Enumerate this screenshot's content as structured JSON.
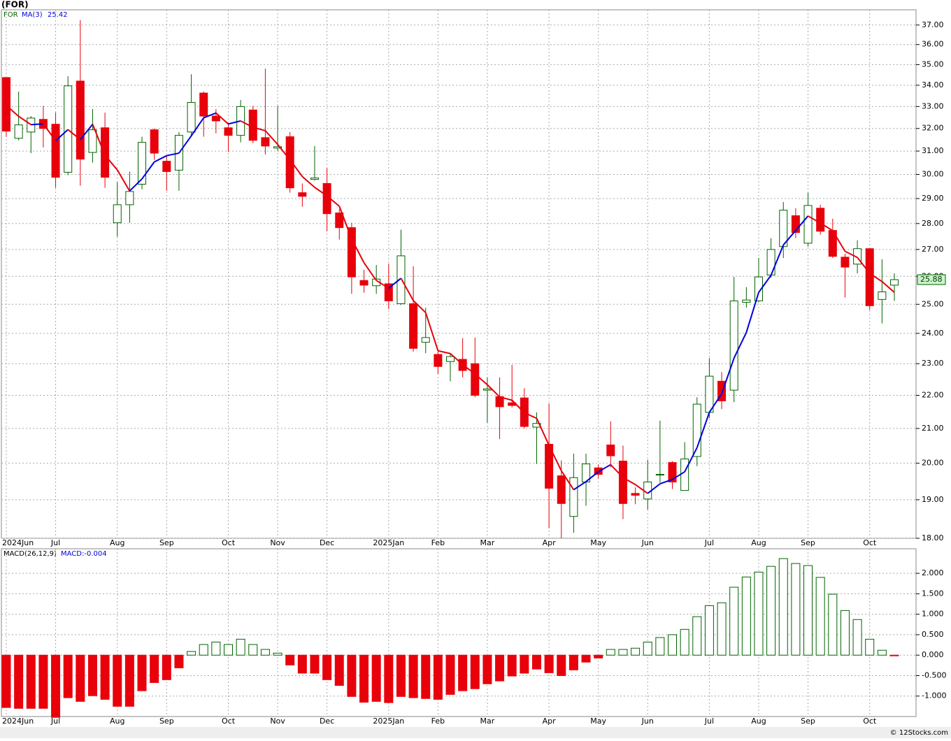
{
  "chart_data": [
    {
      "type": "candlestick",
      "title": "(FOR)",
      "symbol": "FOR",
      "source": "© 12Stocks.com",
      "categories": [
        "2024Jun",
        null,
        null,
        null,
        "Jul",
        null,
        null,
        null,
        null,
        "Aug",
        null,
        null,
        null,
        "Sep",
        null,
        null,
        null,
        null,
        "Oct",
        null,
        null,
        null,
        "Nov",
        null,
        null,
        null,
        "Dec",
        null,
        null,
        null,
        null,
        "2025Jan",
        null,
        null,
        null,
        "Feb",
        null,
        null,
        null,
        "Mar",
        null,
        null,
        null,
        null,
        "Apr",
        null,
        null,
        null,
        "May",
        null,
        null,
        null,
        "Jun",
        null,
        null,
        null,
        null,
        "Jul",
        null,
        null,
        null,
        "Aug",
        null,
        null,
        null,
        "Sep",
        null,
        null,
        null,
        null,
        "Oct",
        null,
        null
      ],
      "open": [
        34.37,
        31.56,
        31.84,
        32.41,
        32.19,
        30.09,
        34.2,
        30.94,
        32.03,
        28.03,
        28.75,
        29.59,
        31.94,
        30.56,
        30.18,
        31.84,
        33.63,
        32.56,
        32.03,
        31.69,
        32.84,
        31.59,
        31.13,
        31.63,
        29.24,
        29.79,
        29.62,
        28.42,
        27.84,
        25.85,
        25.66,
        25.73,
        25.02,
        25.02,
        23.7,
        23.3,
        23.07,
        23.14,
        23.0,
        22.16,
        21.96,
        21.77,
        21.92,
        21.04,
        20.54,
        19.65,
        18.56,
        19.48,
        19.87,
        20.52,
        20.06,
        19.17,
        19.02,
        19.67,
        20.02,
        19.25,
        20.19,
        21.48,
        22.44,
        22.16,
        25.07,
        25.12,
        26.05,
        27.11,
        28.31,
        27.24,
        28.61,
        27.73,
        26.71,
        26.45,
        27.03,
        25.17,
        25.68
      ],
      "high": [
        34.37,
        33.7,
        32.56,
        33.03,
        32.72,
        34.43,
        37.25,
        32.88,
        32.72,
        29.68,
        30.12,
        31.63,
        32.0,
        30.79,
        31.84,
        34.53,
        33.7,
        32.88,
        32.25,
        33.3,
        33.03,
        34.8,
        33.03,
        31.84,
        29.62,
        31.22,
        30.26,
        28.58,
        28.03,
        26.24,
        26.42,
        26.47,
        27.76,
        26.37,
        24.88,
        23.45,
        23.34,
        23.84,
        23.86,
        22.56,
        22.56,
        22.96,
        22.22,
        21.48,
        21.75,
        20.08,
        20.27,
        20.27,
        19.96,
        21.21,
        20.5,
        19.33,
        20.1,
        21.23,
        20.06,
        20.6,
        21.94,
        23.18,
        22.73,
        25.98,
        25.61,
        26.68,
        27.43,
        28.86,
        28.61,
        29.24,
        28.75,
        28.19,
        26.84,
        27.35,
        27.05,
        26.63,
        26.11
      ],
      "low": [
        31.63,
        31.47,
        30.91,
        31.16,
        29.44,
        29.97,
        29.53,
        30.5,
        29.44,
        27.49,
        28.03,
        29.38,
        30.62,
        29.32,
        29.32,
        31.63,
        31.63,
        31.78,
        30.97,
        31.38,
        31.34,
        30.85,
        31.0,
        29.24,
        28.67,
        29.74,
        27.7,
        27.38,
        25.37,
        25.41,
        25.37,
        24.83,
        24.98,
        23.39,
        23.34,
        22.67,
        22.44,
        22.56,
        21.94,
        21.17,
        20.69,
        21.63,
        21.0,
        19.98,
        18.26,
        18.0,
        18.14,
        18.84,
        19.58,
        19.88,
        18.49,
        18.88,
        18.74,
        19.46,
        19.29,
        19.25,
        19.92,
        21.31,
        21.58,
        21.79,
        24.88,
        25.07,
        25.95,
        26.68,
        27.43,
        27.11,
        27.57,
        26.68,
        25.24,
        26.11,
        24.8,
        24.34,
        25.12
      ],
      "close": [
        31.88,
        32.16,
        32.47,
        32.0,
        29.88,
        33.97,
        30.65,
        31.94,
        29.88,
        28.75,
        29.29,
        31.38,
        30.91,
        30.12,
        31.69,
        33.19,
        32.56,
        32.34,
        31.69,
        33.0,
        31.47,
        31.22,
        31.19,
        29.44,
        29.09,
        29.85,
        28.39,
        27.84,
        25.98,
        25.68,
        25.9,
        25.12,
        26.76,
        23.5,
        23.86,
        22.91,
        23.23,
        22.78,
        22.0,
        22.2,
        21.65,
        21.69,
        21.06,
        21.15,
        19.31,
        18.9,
        19.6,
        19.98,
        19.69,
        20.21,
        18.9,
        19.12,
        19.48,
        19.69,
        19.48,
        20.12,
        21.73,
        22.6,
        21.83,
        25.12,
        25.15,
        25.98,
        27.0,
        28.53,
        27.65,
        28.72,
        27.7,
        26.74,
        26.34,
        27.03,
        24.95,
        25.44,
        25.88
      ],
      "up_color": "#006400",
      "down_color": "#e8000b",
      "series": [
        {
          "name": "MA(3)",
          "rising_color": "#0000dd",
          "falling_color": "#e8000b",
          "values": [
            33.05,
            32.55,
            32.17,
            32.21,
            31.45,
            31.95,
            31.5,
            32.19,
            30.82,
            30.19,
            29.31,
            29.81,
            30.53,
            30.8,
            30.91,
            31.67,
            32.48,
            32.7,
            32.2,
            32.34,
            32.05,
            31.9,
            31.29,
            30.62,
            29.91,
            29.46,
            29.11,
            28.69,
            27.4,
            26.5,
            25.85,
            25.57,
            25.93,
            25.13,
            24.71,
            23.42,
            23.33,
            22.97,
            22.67,
            22.33,
            21.95,
            21.85,
            21.47,
            21.3,
            20.51,
            19.79,
            19.27,
            19.49,
            19.76,
            19.96,
            19.6,
            19.41,
            19.17,
            19.43,
            19.55,
            19.76,
            20.44,
            21.48,
            22.05,
            23.18,
            24.03,
            25.42,
            26.04,
            27.17,
            27.73,
            28.3,
            28.02,
            27.72,
            26.93,
            26.7,
            26.11,
            25.81,
            25.42
          ]
        }
      ],
      "log_scale": true,
      "grid": true,
      "ylim": [
        18,
        37.8
      ],
      "yticks": [
        {
          "value": 18,
          "label": "18.00"
        },
        {
          "value": 19,
          "label": "19.00"
        },
        {
          "value": 20,
          "label": "20.00"
        },
        {
          "value": 21,
          "label": "21.00"
        },
        {
          "value": 22,
          "label": "22.00"
        },
        {
          "value": 23,
          "label": "23.00"
        },
        {
          "value": 24,
          "label": "24.00"
        },
        {
          "value": 25,
          "label": "25.00"
        },
        {
          "value": 26,
          "label": "26.00"
        },
        {
          "value": 27,
          "label": "27.00"
        },
        {
          "value": 28,
          "label": "28.00"
        },
        {
          "value": 29,
          "label": "29.00"
        },
        {
          "value": 30,
          "label": "30.00"
        },
        {
          "value": 31,
          "label": "31.00"
        },
        {
          "value": 32,
          "label": "32.00"
        },
        {
          "value": 33,
          "label": "33.00"
        },
        {
          "value": 34,
          "label": "34.00"
        },
        {
          "value": 35,
          "label": "35.00"
        },
        {
          "value": 36,
          "label": "36.00"
        },
        {
          "value": 37,
          "label": "37.00"
        }
      ]
    },
    {
      "type": "bar",
      "title": "MACD(26,12,9)",
      "value_label": "MACD:-0.004",
      "up_color": "#006400",
      "down_color": "#e8000b",
      "grid": true,
      "values": [
        -1.28,
        -1.3,
        -1.3,
        -1.3,
        -1.52,
        -1.04,
        -1.13,
        -0.99,
        -1.08,
        -1.25,
        -1.25,
        -0.87,
        -0.67,
        -0.6,
        -0.31,
        0.09,
        0.26,
        0.32,
        0.26,
        0.39,
        0.26,
        0.14,
        0.05,
        -0.24,
        -0.44,
        -0.44,
        -0.6,
        -0.74,
        -1.01,
        -1.15,
        -1.13,
        -1.16,
        -1.01,
        -1.04,
        -1.06,
        -1.08,
        -0.96,
        -0.87,
        -0.82,
        -0.7,
        -0.63,
        -0.51,
        -0.44,
        -0.34,
        -0.43,
        -0.5,
        -0.36,
        -0.17,
        -0.07,
        0.14,
        0.14,
        0.17,
        0.32,
        0.43,
        0.5,
        0.63,
        0.94,
        1.21,
        1.28,
        1.66,
        1.91,
        2.03,
        2.17,
        2.36,
        2.24,
        2.19,
        1.9,
        1.49,
        1.09,
        0.87,
        0.39,
        0.12,
        -0.004
      ],
      "ylim": [
        -1.5,
        2.6
      ],
      "yticks": [
        {
          "value": -1,
          "label": "-1.000"
        },
        {
          "value": -0.5,
          "label": "-0.500"
        },
        {
          "value": 0,
          "label": "0.000"
        },
        {
          "value": 0.5,
          "label": "0.500"
        },
        {
          "value": 1,
          "label": "1.000"
        },
        {
          "value": 1.5,
          "label": "1.500"
        },
        {
          "value": 2,
          "label": "2.000"
        }
      ]
    }
  ]
}
